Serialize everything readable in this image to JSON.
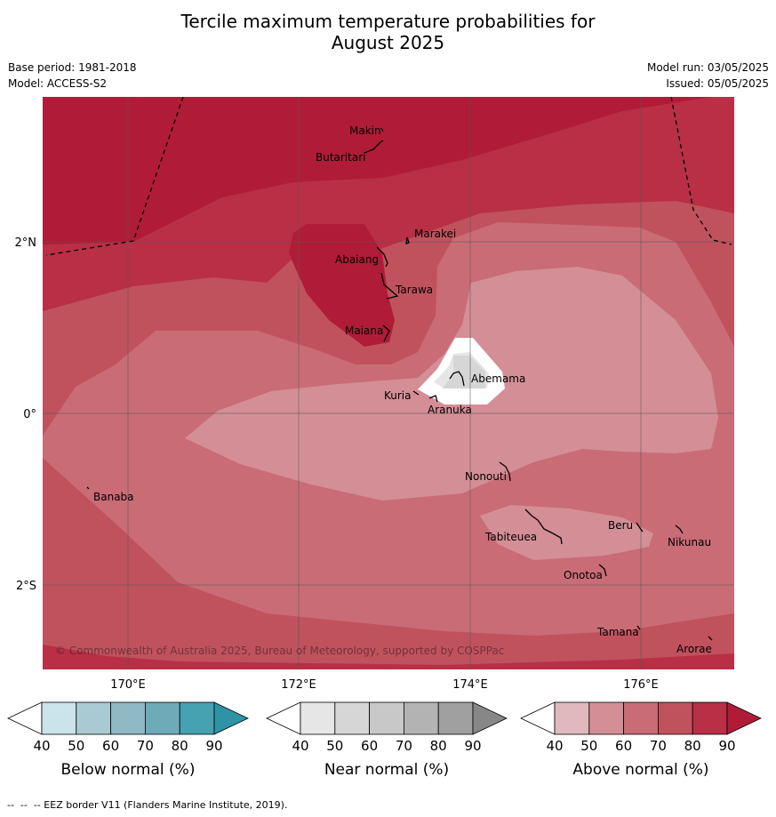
{
  "title_line1": "Tercile maximum temperature probabilities for",
  "title_line2": "August 2025",
  "base_period": "Base period: 1981-2018",
  "model": "Model: ACCESS-S2",
  "model_run": "Model run: 03/05/2025",
  "issued": "Issued: 05/05/2025",
  "map": {
    "lon_labels": [
      "170°E",
      "172°E",
      "174°E",
      "176°E"
    ],
    "lat_labels": [
      "2°N",
      "0°",
      "2°S"
    ],
    "places": [
      "Makin",
      "Butaritari",
      "Marakei",
      "Abaiang",
      "Tarawa",
      "Maiana",
      "Abemama",
      "Kuria",
      "Aranuka",
      "Nonouti",
      "Banaba",
      "Tabiteuea",
      "Beru",
      "Nikunau",
      "Onotoa",
      "Tamana",
      "Arorae"
    ],
    "copyright": "© Commonwealth of Australia 2025, Bureau of Meteorology, supported by COSPPac"
  },
  "colorbars": [
    {
      "label": "Below normal (%)",
      "ticks": [
        "40",
        "50",
        "60",
        "70",
        "80",
        "90"
      ],
      "colors": [
        "#ffffff",
        "#cbe3ea",
        "#a9cad2",
        "#8fb9c4",
        "#6dabb9",
        "#46a1b1",
        "#2e93a5"
      ]
    },
    {
      "label": "Near normal (%)",
      "ticks": [
        "40",
        "50",
        "60",
        "70",
        "80",
        "90"
      ],
      "colors": [
        "#ffffff",
        "#e6e6e6",
        "#d6d6d6",
        "#c8c8c8",
        "#b3b3b3",
        "#a0a0a0",
        "#878787"
      ]
    },
    {
      "label": "Above normal (%)",
      "ticks": [
        "40",
        "50",
        "60",
        "70",
        "80",
        "90"
      ],
      "colors": [
        "#ffffff",
        "#e0b9be",
        "#d48e96",
        "#c96c76",
        "#c0525e",
        "#b82f46",
        "#b01c37"
      ]
    }
  ],
  "footer": "--  --  -- EEZ border V11 (Flanders Marine Institute, 2019)."
}
